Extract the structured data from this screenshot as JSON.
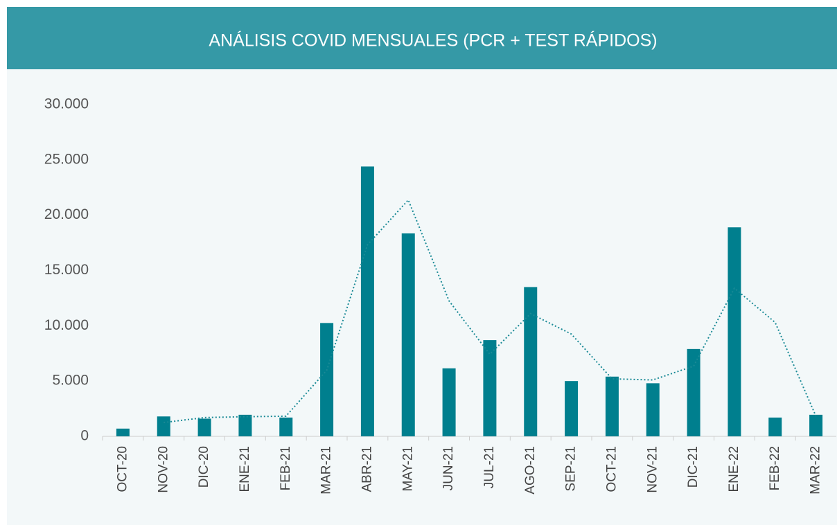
{
  "chart_data": {
    "type": "bar",
    "title": "ANÁLISIS COVID MENSUALES (PCR + TEST RÁPIDOS)",
    "categories": [
      "OCT-20",
      "NOV-20",
      "DIC-20",
      "ENE-21",
      "FEB-21",
      "MAR-21",
      "ABR-21",
      "MAY-21",
      "JUN-21",
      "JUL-21",
      "AGO-21",
      "SEP-21",
      "OCT-21",
      "NOV-21",
      "DIC-21",
      "ENE-22",
      "FEB-22",
      "MAR-22"
    ],
    "values": [
      700,
      1800,
      1600,
      1950,
      1700,
      10250,
      24400,
      18350,
      6150,
      8700,
      13500,
      5000,
      5400,
      4800,
      7900,
      18900,
      1700,
      1950
    ],
    "color": "#007f8e",
    "trendline": {
      "color": "#1a8a96",
      "values": [
        null,
        1250,
        1700,
        1775,
        1825,
        5975,
        17325,
        21375,
        12250,
        7425,
        11100,
        9250,
        5200,
        5100,
        6350,
        13400,
        10300,
        1825
      ]
    },
    "ylim": [
      0,
      30000
    ],
    "yticks": [
      0,
      {
        "value": 5000,
        "label": "5.000"
      },
      {
        "value": 10000,
        "label": "10.000"
      },
      {
        "value": 15000,
        "label": "15.000"
      },
      {
        "value": 20000,
        "label": "20.000"
      },
      {
        "value": 25000,
        "label": "25.000"
      },
      {
        "value": 30000,
        "label": "30.000"
      }
    ]
  }
}
